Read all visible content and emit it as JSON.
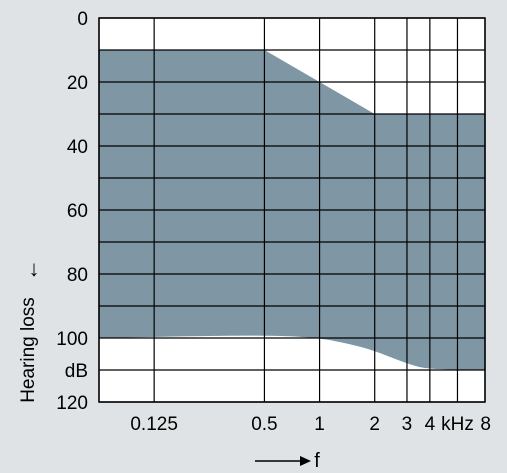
{
  "chart_data": {
    "type": "area",
    "title": "",
    "x_scale": "log",
    "x_ticks": [
      {
        "value": 0.125,
        "label": "0.125"
      },
      {
        "value": 0.5,
        "label": "0.5"
      },
      {
        "value": 1,
        "label": "1"
      },
      {
        "value": 2,
        "label": "2"
      },
      {
        "value": 3,
        "label": "3"
      },
      {
        "value": 4,
        "label": "4"
      },
      {
        "value": 5.66,
        "label": "kHz"
      },
      {
        "value": 8,
        "label": "8"
      }
    ],
    "x_gridlines": [
      0.0625,
      0.125,
      0.5,
      1,
      2,
      3,
      4,
      5.66,
      8
    ],
    "xlim": [
      0.0625,
      8
    ],
    "y_ticks": [
      {
        "value": 0,
        "label": "0"
      },
      {
        "value": 20,
        "label": "20"
      },
      {
        "value": 40,
        "label": "40"
      },
      {
        "value": 60,
        "label": "60"
      },
      {
        "value": 80,
        "label": "80"
      },
      {
        "value": 100,
        "label": "100"
      },
      {
        "value": 110,
        "label": "dB"
      },
      {
        "value": 120,
        "label": "120"
      }
    ],
    "y_gridlines": [
      0,
      10,
      20,
      30,
      40,
      50,
      60,
      70,
      80,
      90,
      100,
      110,
      120
    ],
    "ylim": [
      0,
      120
    ],
    "y_inverted": true,
    "ylabel": "Hearing loss",
    "ylabel_arrow": "↓",
    "xlabel": "f",
    "xlabel_arrow": "→",
    "grid": true,
    "colors": {
      "background": "#dfe3e6",
      "plot_background": "#ffffff",
      "band_fill": "#7f97a5",
      "grid": "#000000"
    },
    "series": [
      {
        "upper": [
          {
            "x": 0.0625,
            "y": 10
          },
          {
            "x": 0.5,
            "y": 10
          },
          {
            "x": 1,
            "y": 20
          },
          {
            "x": 2,
            "y": 30
          },
          {
            "x": 8,
            "y": 30
          }
        ],
        "lower": [
          {
            "x": 0.0625,
            "y": 100
          },
          {
            "x": 0.5,
            "y": 99
          },
          {
            "x": 1,
            "y": 100
          },
          {
            "x": 1.5,
            "y": 102
          },
          {
            "x": 2,
            "y": 104
          },
          {
            "x": 3,
            "y": 108
          },
          {
            "x": 4,
            "y": 110
          },
          {
            "x": 8,
            "y": 110
          }
        ]
      }
    ]
  }
}
